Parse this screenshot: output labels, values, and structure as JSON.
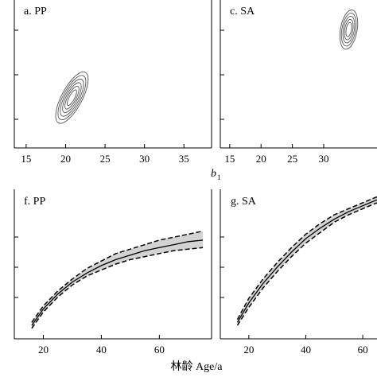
{
  "chart_data": [
    {
      "id": "a",
      "type": "contour",
      "title": "a. PP",
      "xlabel": "b",
      "xlabel_sub": "1",
      "xlim": [
        13.5,
        38.5
      ],
      "ylim": [
        0,
        1
      ],
      "xticks": [
        15,
        20,
        25,
        30,
        35
      ],
      "contour_center": [
        20.8,
        0.34
      ],
      "contour_levels": 6
    },
    {
      "id": "c",
      "type": "contour",
      "title": "c. SA",
      "xlim": [
        13.5,
        38.5
      ],
      "ylim": [
        0,
        1
      ],
      "xticks": [
        15,
        20,
        25,
        30
      ],
      "contour_center": [
        34.0,
        0.8
      ],
      "contour_levels": 5
    },
    {
      "id": "f",
      "type": "line",
      "title": "f. PP",
      "xlabel": "林龄 Age/a",
      "xlim": [
        10,
        78
      ],
      "ylim": [
        0,
        1
      ],
      "xticks": [
        20,
        40,
        60
      ],
      "series": [
        {
          "x": [
            16,
            20,
            25,
            30,
            35,
            40,
            45,
            50,
            55,
            60,
            65,
            70,
            75
          ],
          "values": [
            0.09,
            0.2,
            0.3,
            0.38,
            0.44,
            0.49,
            0.53,
            0.56,
            0.59,
            0.61,
            0.63,
            0.65,
            0.66
          ],
          "band_lower": [
            0.07,
            0.18,
            0.28,
            0.36,
            0.42,
            0.46,
            0.5,
            0.53,
            0.55,
            0.57,
            0.59,
            0.6,
            0.61
          ],
          "band_upper": [
            0.11,
            0.22,
            0.32,
            0.4,
            0.47,
            0.52,
            0.57,
            0.6,
            0.63,
            0.66,
            0.68,
            0.7,
            0.72
          ]
        }
      ]
    },
    {
      "id": "g",
      "type": "line",
      "title": "g. SA",
      "xlim": [
        10,
        65
      ],
      "ylim": [
        0,
        1
      ],
      "xticks": [
        20,
        40,
        60
      ],
      "series": [
        {
          "x": [
            16,
            20,
            25,
            30,
            35,
            40,
            45,
            50,
            55,
            60,
            65
          ],
          "values": [
            0.11,
            0.24,
            0.37,
            0.48,
            0.58,
            0.67,
            0.74,
            0.8,
            0.85,
            0.89,
            0.93
          ],
          "band_lower": [
            0.09,
            0.21,
            0.34,
            0.45,
            0.55,
            0.64,
            0.71,
            0.78,
            0.83,
            0.87,
            0.91
          ],
          "band_upper": [
            0.13,
            0.27,
            0.4,
            0.51,
            0.61,
            0.7,
            0.77,
            0.83,
            0.87,
            0.91,
            0.95
          ]
        }
      ]
    }
  ]
}
